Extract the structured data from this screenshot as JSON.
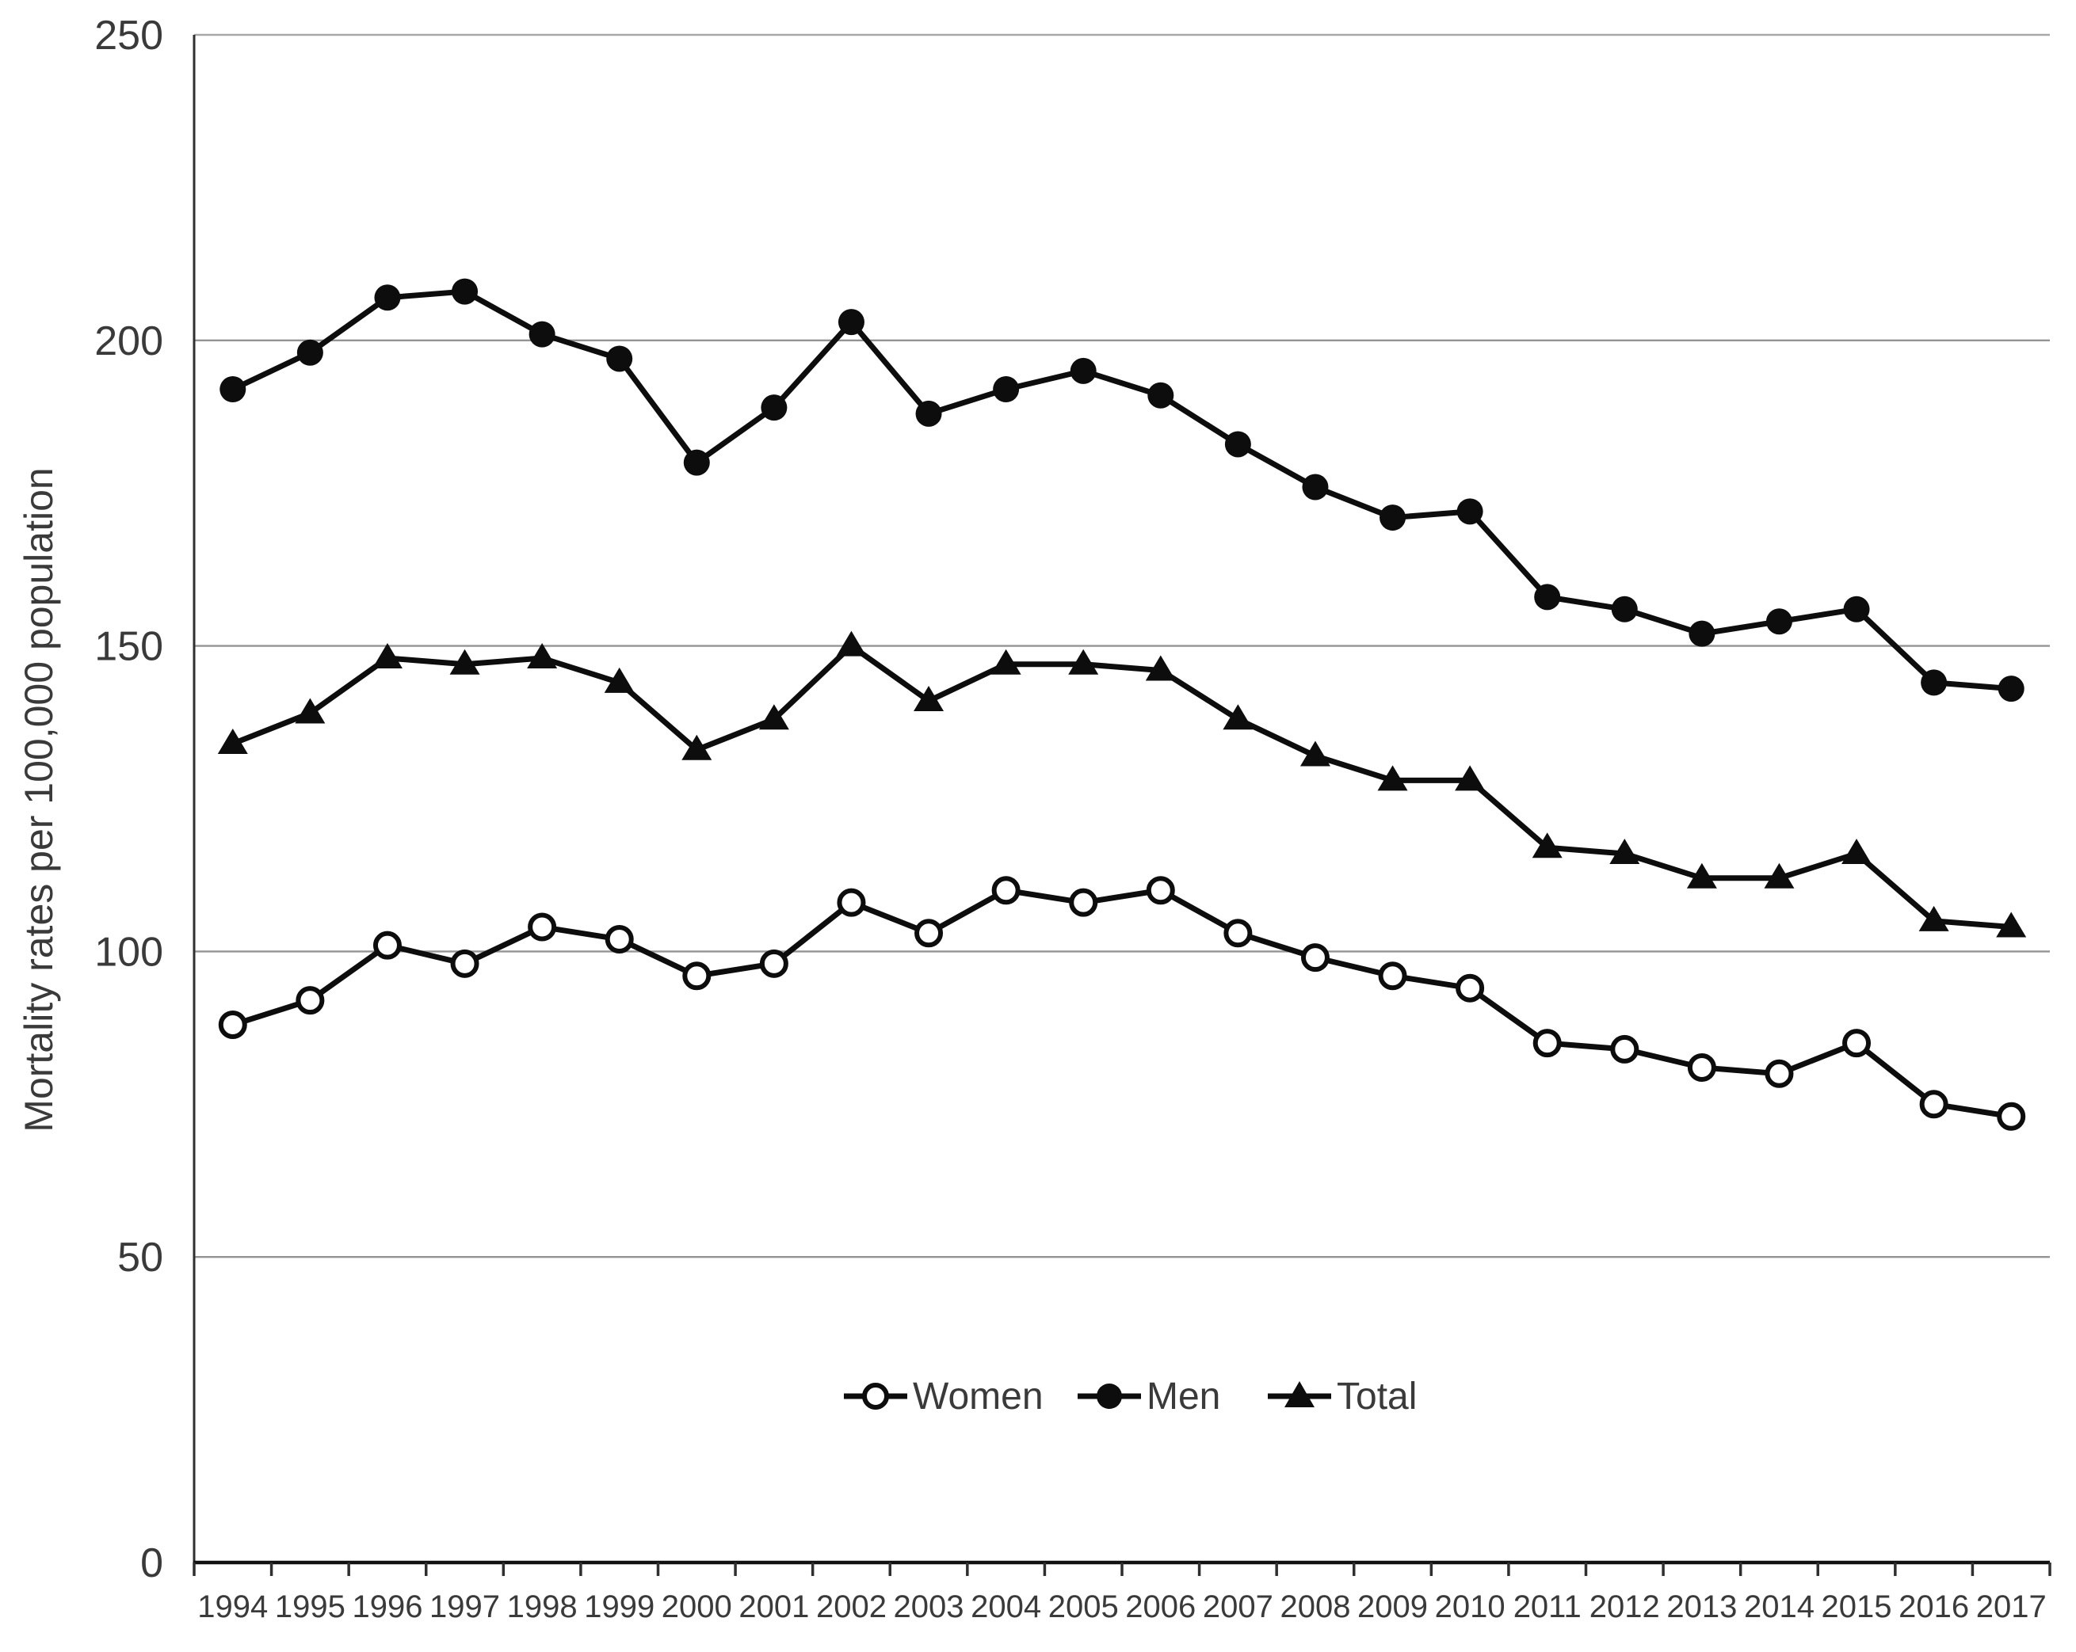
{
  "figure": {
    "title": "",
    "background": "#ffffff"
  },
  "chart_data": {
    "type": "line",
    "x": [
      1994,
      1995,
      1996,
      1997,
      1998,
      1999,
      2000,
      2001,
      2002,
      2003,
      2004,
      2005,
      2006,
      2007,
      2008,
      2009,
      2010,
      2011,
      2012,
      2013,
      2014,
      2015,
      2016,
      2017
    ],
    "series": [
      {
        "name": "Women",
        "marker": "open-circle",
        "values": [
          88,
          92,
          101,
          98,
          104,
          102,
          96,
          98,
          108,
          103,
          110,
          108,
          110,
          103,
          99,
          96,
          94,
          85,
          84,
          81,
          80,
          85,
          75,
          73
        ]
      },
      {
        "name": "Men",
        "marker": "filled-circle",
        "values": [
          192,
          198,
          207,
          208,
          201,
          197,
          180,
          189,
          203,
          188,
          192,
          195,
          191,
          183,
          176,
          171,
          172,
          158,
          156,
          152,
          154,
          156,
          144,
          143
        ]
      },
      {
        "name": "Total",
        "marker": "filled-triangle",
        "values": [
          134,
          139,
          148,
          147,
          148,
          144,
          133,
          138,
          150,
          141,
          147,
          147,
          146,
          138,
          132,
          128,
          128,
          117,
          116,
          112,
          112,
          116,
          105,
          104
        ]
      }
    ],
    "title": "",
    "xlabel": "",
    "ylabel": "Mortality rates per 100,000 population",
    "ylim": [
      0,
      250
    ],
    "yticks": [
      0,
      50,
      100,
      150,
      200,
      250
    ],
    "grid": true,
    "legend_position": "bottom-center-inside",
    "series_color": "#0d0d0d",
    "grid_color": "#949494",
    "top_border_color": "#a8a8a8",
    "axis_color": "#2f2f2f",
    "text_color": "#3a3a3a"
  }
}
